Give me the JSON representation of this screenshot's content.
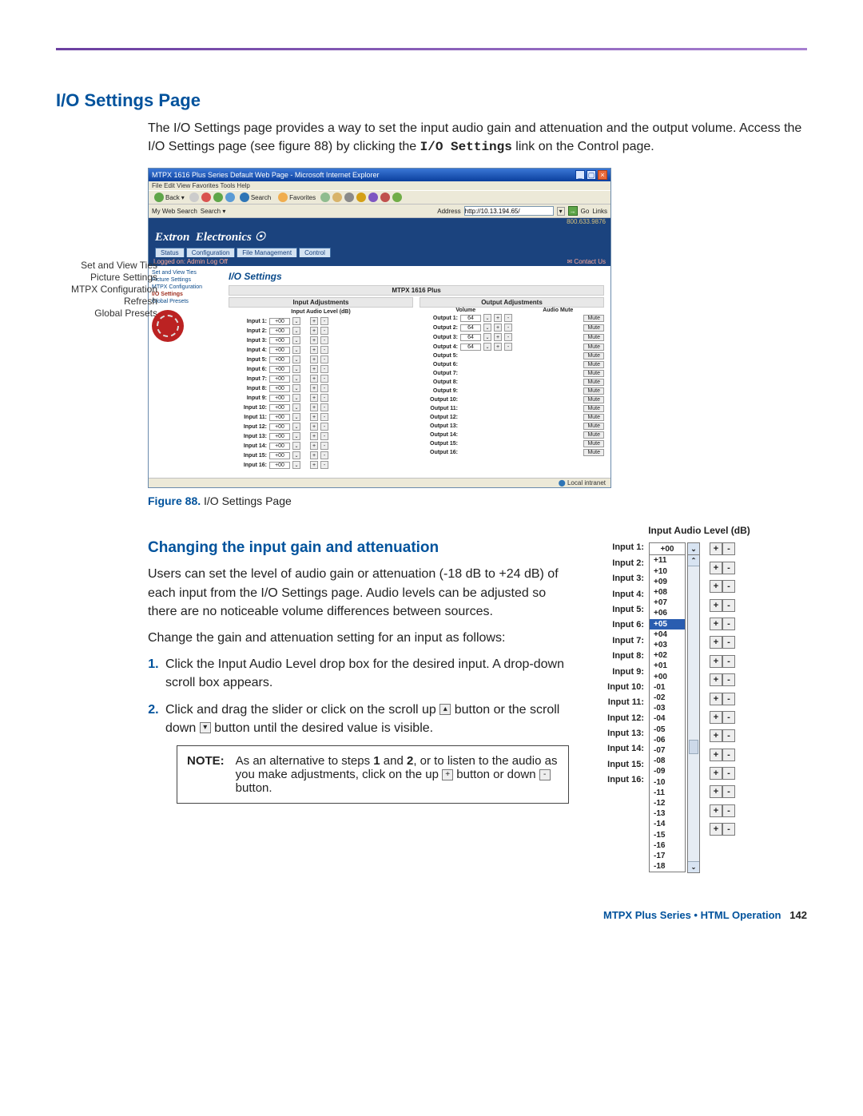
{
  "header": {
    "rule_color": "#6b3fa0"
  },
  "sec1": {
    "title": "I/O Settings Page",
    "para": "The I/O Settings page provides a way to set the input audio gain and attenuation and the output volume. Access the I/O Settings page (see figure 88) by clicking the ",
    "mono": "I/O Settings",
    "para2": " link on the Control page."
  },
  "side_labels": [
    "Set and View Ties",
    "Picture Settings",
    "MTPX Configuration",
    "Refresh",
    "Global Presets"
  ],
  "ie": {
    "title": "MTPX 1616 Plus Series Default Web Page - Microsoft Internet Explorer",
    "menu": "File   Edit   View   Favorites   Tools   Help",
    "back": "Back",
    "search": "Search",
    "fav": "Favorites",
    "addr_label": "My Web Search",
    "addr_search": "Search",
    "addr_prefix": "Address",
    "url": "http://10.13.194.65/",
    "go": "Go",
    "links": "Links"
  },
  "extron": {
    "brand": "Extron Electronics ☉",
    "tabs": [
      "Status",
      "Configuration",
      "File Management",
      "Control"
    ],
    "logged": "Logged on: Admin        Log Off",
    "contact": "✉ Contact Us",
    "phone": "800.633.9876",
    "side": [
      "Set and View Ties",
      "Picture Settings",
      "MTPX Configuration",
      "I/O Settings",
      "Global Presets"
    ],
    "io_title": "I/O Settings",
    "product": "MTPX 1616 Plus",
    "in_hdr": "Input Adjustments",
    "out_hdr": "Output Adjustments",
    "in_sub": "Input Audio Level (dB)",
    "out_sub_vol": "Volume",
    "out_sub_mute": "Audio Mute",
    "input_rows": [
      "Input 1:",
      "Input 2:",
      "Input 3:",
      "Input 4:",
      "Input 5:",
      "Input 6:",
      "Input 7:",
      "Input 8:",
      "Input 9:",
      "Input 10:",
      "Input 11:",
      "Input 12:",
      "Input 13:",
      "Input 14:",
      "Input 15:",
      "Input 16:"
    ],
    "output_rows": [
      "Output 1:",
      "Output 2:",
      "Output 3:",
      "Output 4:",
      "Output 5:",
      "Output 6:",
      "Output 7:",
      "Output 8:",
      "Output 9:",
      "Output 10:",
      "Output 11:",
      "Output 12:",
      "Output 13:",
      "Output 14:",
      "Output 15:",
      "Output 16:"
    ],
    "val00": "+00",
    "val64": "64",
    "mute": "Mute",
    "status": "Local intranet"
  },
  "fig": {
    "label": "Figure 88.",
    "text": "I/O Settings Page"
  },
  "sec2": {
    "title": "Changing the input gain and attenuation",
    "p1": "Users can set the level of audio gain or attenuation (-18 dB to +24 dB) of each input from the I/O Settings page. Audio levels can be adjusted so there are no noticeable volume differences between sources.",
    "p2": "Change the gain and attenuation setting for an input as follows:",
    "s1": "Click the Input Audio Level drop box for the desired input. A drop-down scroll box appears.",
    "s2a": "Click and drag the slider or click on the scroll up ",
    "s2b": " button or the scroll down ",
    "s2c": " button until the desired value is visible.",
    "note_label": "NOTE:",
    "note_a": "As an alternative to steps ",
    "note_b1": "1",
    "note_mid": " and ",
    "note_b2": "2",
    "note_c": ", or to listen to the audio as you make adjustments, click on the up ",
    "note_d": " button or down ",
    "note_e": " button."
  },
  "alv": {
    "title": "Input Audio Level (dB)",
    "labels": [
      "Input 1:",
      "Input 2:",
      "Input 3:",
      "Input 4:",
      "Input 5:",
      "Input 6:",
      "Input 7:",
      "Input 8:",
      "Input 9:",
      "Input 10:",
      "Input 11:",
      "Input 12:",
      "Input 13:",
      "Input 14:",
      "Input 15:",
      "Input 16:"
    ],
    "top_val": "+00",
    "selected": "+05",
    "options": [
      "+11",
      "+10",
      "+09",
      "+08",
      "+07",
      "+06",
      "+05",
      "+04",
      "+03",
      "+02",
      "+01",
      "+00",
      "-01",
      "-02",
      "-03",
      "-04",
      "-05",
      "-06",
      "-07",
      "-08",
      "-09",
      "-10",
      "-11",
      "-12",
      "-13",
      "-14",
      "-15",
      "-16",
      "-17",
      "-18"
    ]
  },
  "footer": {
    "text": "MTPX Plus Series • HTML Operation",
    "page": "142"
  }
}
